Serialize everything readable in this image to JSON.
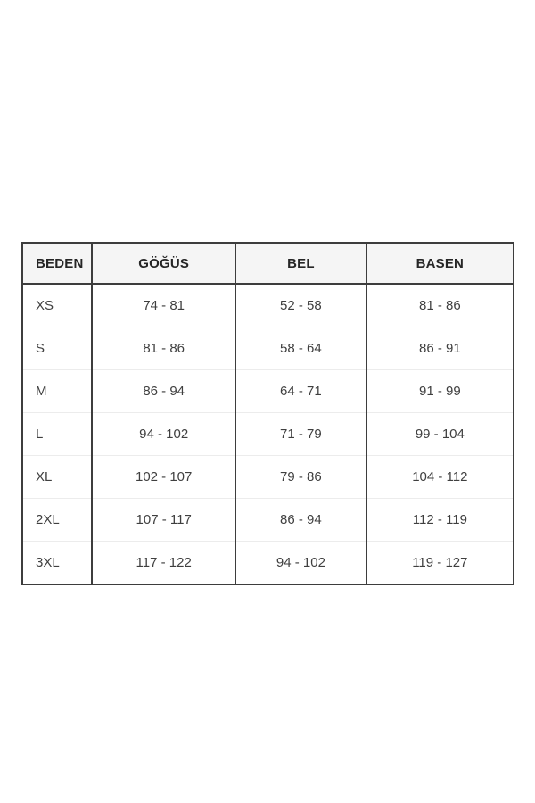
{
  "page": {
    "background": "#ffffff"
  },
  "size_chart": {
    "headers": [
      "BEDEN",
      "GÖĞÜS",
      "BEL",
      "BASEN"
    ],
    "rows": [
      {
        "beden": "XS",
        "gogus": "74 - 81",
        "bel": "52 - 58",
        "basen": "81 - 86"
      },
      {
        "beden": "S",
        "gogus": "81 - 86",
        "bel": "58 - 64",
        "basen": "86 - 91"
      },
      {
        "beden": "M",
        "gogus": "86 - 94",
        "bel": "64 - 71",
        "basen": "91 - 99"
      },
      {
        "beden": "L",
        "gogus": "94 - 102",
        "bel": "71 - 79",
        "basen": "99 - 104"
      },
      {
        "beden": "XL",
        "gogus": "102 - 107",
        "bel": "79 - 86",
        "basen": "104 - 112"
      },
      {
        "beden": "2XL",
        "gogus": "107 - 117",
        "bel": "86 - 94",
        "basen": "112 - 119"
      },
      {
        "beden": "3XL",
        "gogus": "117 - 122",
        "bel": "94 - 102",
        "basen": "119 - 127"
      }
    ],
    "colors": {
      "border_dark": "#3d3d3d",
      "row_divider": "#ececec",
      "header_background": "#f5f5f5",
      "header_text": "#262626",
      "cell_text": "#3f3f3f"
    }
  }
}
